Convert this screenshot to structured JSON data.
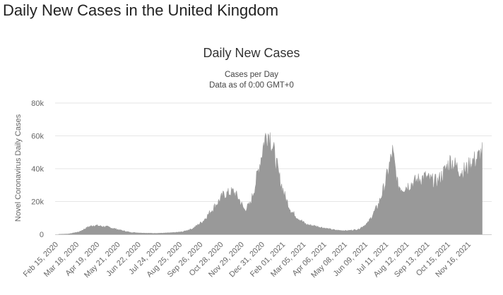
{
  "page": {
    "title": "Daily New Cases in the United Kingdom"
  },
  "chart_data": {
    "type": "area",
    "title": "Daily New Cases",
    "subtitle": [
      "Cases per Day",
      "Data as of 0:00 GMT+0"
    ],
    "ylabel": "Novel Coronavirus Daily Cases",
    "xlabel": "",
    "ylim": [
      0,
      80000
    ],
    "yticks": [
      0,
      20000,
      40000,
      60000,
      80000
    ],
    "ytick_labels": [
      "0",
      "20k",
      "40k",
      "60k",
      "80k"
    ],
    "xtick_labels": [
      "Feb 15, 2020",
      "Mar 18, 2020",
      "Apr 19, 2020",
      "May 21, 2020",
      "Jun 22, 2020",
      "Jul 24, 2020",
      "Aug 25, 2020",
      "Sep 26, 2020",
      "Oct 28, 2020",
      "Nov 29, 2020",
      "Dec 31, 2020",
      "Feb 01, 2021",
      "Mar 05, 2021",
      "Apr 06, 2021",
      "May 08, 2021",
      "Jun 09, 2021",
      "Jul 11, 2021",
      "Aug 12, 2021",
      "Sep 13, 2021",
      "Oct 15, 2021",
      "Nov 16, 2021"
    ],
    "grid": true,
    "legend": "none",
    "color": "#999999",
    "x": [
      "Feb 15, 2020",
      "Mar 01, 2020",
      "Mar 18, 2020",
      "Apr 01, 2020",
      "Apr 10, 2020",
      "Apr 19, 2020",
      "May 01, 2020",
      "May 21, 2020",
      "Jun 05, 2020",
      "Jun 22, 2020",
      "Jul 10, 2020",
      "Jul 24, 2020",
      "Aug 10, 2020",
      "Aug 25, 2020",
      "Sep 10, 2020",
      "Sep 26, 2020",
      "Oct 10, 2020",
      "Oct 20, 2020",
      "Oct 28, 2020",
      "Nov 05, 2020",
      "Nov 12, 2020",
      "Nov 20, 2020",
      "Nov 29, 2020",
      "Dec 08, 2020",
      "Dec 16, 2020",
      "Dec 24, 2020",
      "Dec 29, 2020",
      "Dec 31, 2020",
      "Jan 04, 2021",
      "Jan 08, 2021",
      "Jan 15, 2021",
      "Jan 22, 2021",
      "Feb 01, 2021",
      "Feb 10, 2021",
      "Feb 20, 2021",
      "Mar 05, 2021",
      "Mar 20, 2021",
      "Apr 06, 2021",
      "Apr 20, 2021",
      "May 08, 2021",
      "May 25, 2021",
      "Jun 09, 2021",
      "Jun 25, 2021",
      "Jul 05, 2021",
      "Jul 11, 2021",
      "Jul 17, 2021",
      "Jul 25, 2021",
      "Aug 01, 2021",
      "Aug 12, 2021",
      "Aug 25, 2021",
      "Sep 05, 2021",
      "Sep 13, 2021",
      "Sep 25, 2021",
      "Oct 05, 2021",
      "Oct 15, 2021",
      "Oct 22, 2021",
      "Nov 01, 2021",
      "Nov 10, 2021",
      "Nov 16, 2021",
      "Nov 25, 2021",
      "Dec 03, 2021"
    ],
    "values": [
      0,
      200,
      1500,
      4500,
      5500,
      5000,
      4500,
      2500,
      1200,
      800,
      600,
      700,
      1000,
      1500,
      3500,
      8000,
      15000,
      20000,
      24000,
      25000,
      26000,
      22000,
      15000,
      18000,
      30000,
      45000,
      55000,
      58000,
      62000,
      60000,
      48000,
      35000,
      22000,
      14000,
      10000,
      6000,
      5000,
      3500,
      2500,
      2200,
      3000,
      7000,
      18000,
      30000,
      40000,
      50000,
      30000,
      28000,
      30000,
      33000,
      35000,
      33000,
      32000,
      38000,
      45000,
      42000,
      38000,
      40000,
      44000,
      46000,
      50000
    ]
  }
}
